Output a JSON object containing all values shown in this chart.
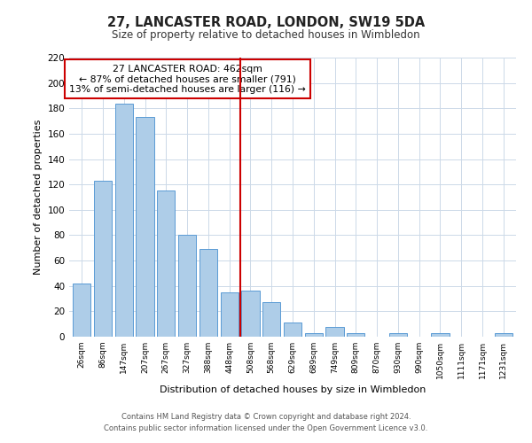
{
  "title": "27, LANCASTER ROAD, LONDON, SW19 5DA",
  "subtitle": "Size of property relative to detached houses in Wimbledon",
  "xlabel": "Distribution of detached houses by size in Wimbledon",
  "ylabel": "Number of detached properties",
  "categories": [
    "26sqm",
    "86sqm",
    "147sqm",
    "207sqm",
    "267sqm",
    "327sqm",
    "388sqm",
    "448sqm",
    "508sqm",
    "568sqm",
    "629sqm",
    "689sqm",
    "749sqm",
    "809sqm",
    "870sqm",
    "930sqm",
    "990sqm",
    "1050sqm",
    "1111sqm",
    "1171sqm",
    "1231sqm"
  ],
  "values": [
    42,
    123,
    184,
    173,
    115,
    80,
    69,
    35,
    36,
    27,
    11,
    3,
    8,
    3,
    0,
    3,
    0,
    3,
    0,
    0,
    3
  ],
  "bar_color": "#aecde8",
  "bar_edge_color": "#5b9bd5",
  "vline_x": 7.5,
  "vline_color": "#cc0000",
  "annotation_text": "27 LANCASTER ROAD: 462sqm\n← 87% of detached houses are smaller (791)\n13% of semi-detached houses are larger (116) →",
  "annotation_box_edge_color": "#cc0000",
  "ylim": [
    0,
    220
  ],
  "yticks": [
    0,
    20,
    40,
    60,
    80,
    100,
    120,
    140,
    160,
    180,
    200,
    220
  ],
  "footer_line1": "Contains HM Land Registry data © Crown copyright and database right 2024.",
  "footer_line2": "Contains public sector information licensed under the Open Government Licence v3.0.",
  "bg_color": "#ffffff",
  "grid_color": "#ccd9e8"
}
